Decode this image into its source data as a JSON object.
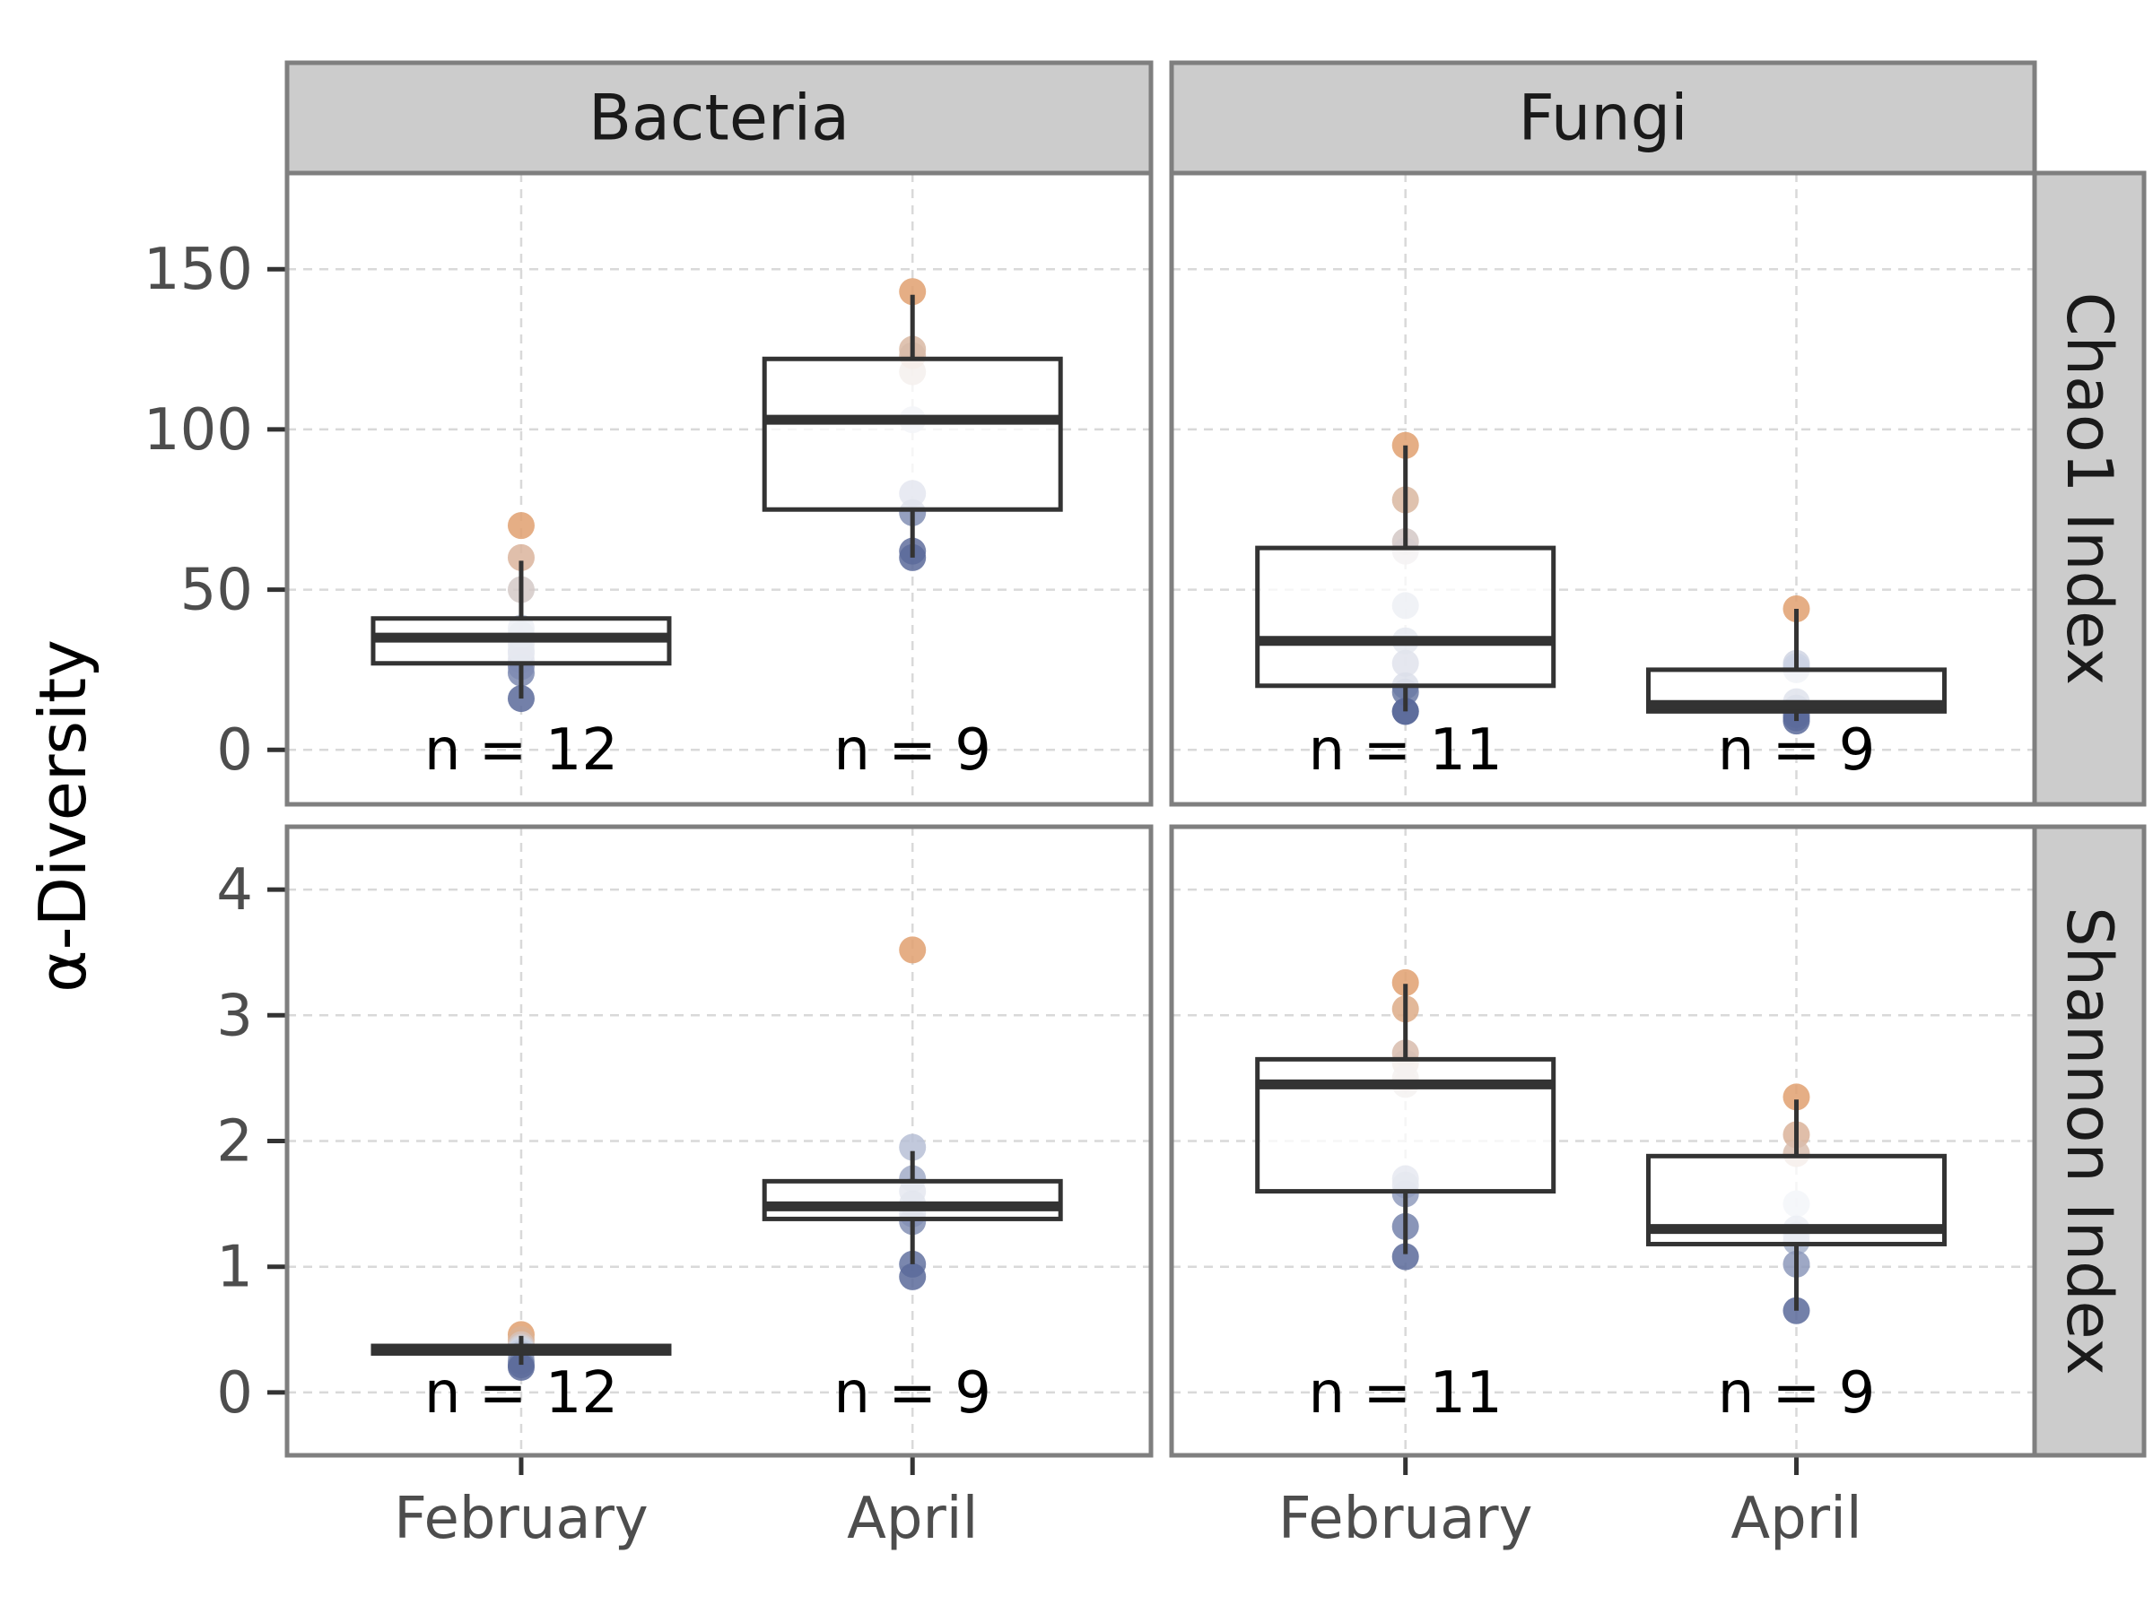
{
  "chart_data": {
    "type": "box",
    "ylabel": "α-Diversity",
    "categories": [
      "February",
      "April"
    ],
    "columns": [
      "Bacteria",
      "Fungi"
    ],
    "rows": [
      "Chao1 Index",
      "Shannon Index"
    ],
    "colors": {
      "low": "#5a6a9a",
      "mid": "#d0d7e6",
      "high": "#e0a070",
      "box": "#333333",
      "strip": "#cccccc",
      "frame": "#7f7f7f",
      "grid": "#d9d9d9"
    },
    "panels": [
      {
        "column": "Bacteria",
        "row": "Chao1 Index",
        "ylim": [
          -17,
          180
        ],
        "yticks": [
          0,
          50,
          100,
          150
        ],
        "groups": [
          {
            "category": "February",
            "n_label": "n = 12",
            "box": {
              "q1": 27,
              "median": 35,
              "q3": 41,
              "whisker_low": 16,
              "whisker_high": 59
            },
            "points": [
              70,
              60,
              50,
              38,
              33,
              30,
              28,
              26,
              24,
              16,
              36,
              31
            ]
          },
          {
            "category": "April",
            "n_label": "n = 9",
            "box": {
              "q1": 75,
              "median": 103,
              "q3": 122,
              "whisker_low": 60,
              "whisker_high": 142
            },
            "points": [
              143,
              125,
              118,
              103,
              80,
              74,
              62,
              60,
              123
            ]
          }
        ]
      },
      {
        "column": "Fungi",
        "row": "Chao1 Index",
        "ylim": [
          -17,
          180
        ],
        "yticks": [
          0,
          50,
          100,
          150
        ],
        "groups": [
          {
            "category": "February",
            "n_label": "n = 11",
            "box": {
              "q1": 20,
              "median": 34,
              "q3": 63,
              "whisker_low": 12,
              "whisker_high": 95
            },
            "points": [
              95,
              78,
              65,
              62,
              45,
              34,
              27,
              20,
              18,
              12,
              12
            ]
          },
          {
            "category": "April",
            "n_label": "n = 9",
            "box": {
              "q1": 12,
              "median": 14,
              "q3": 25,
              "whisker_low": 9,
              "whisker_high": 44
            },
            "points": [
              44,
              27,
              25,
              15,
              13,
              11,
              10,
              9,
              26
            ]
          }
        ]
      },
      {
        "column": "Bacteria",
        "row": "Shannon Index",
        "ylim": [
          -0.5,
          4.5
        ],
        "yticks": [
          0,
          1,
          2,
          3,
          4
        ],
        "groups": [
          {
            "category": "February",
            "n_label": "n = 12",
            "box": {
              "q1": 0.31,
              "median": 0.34,
              "q3": 0.37,
              "whisker_low": 0.22,
              "whisker_high": 0.45
            },
            "points": [
              0.46,
              0.42,
              0.38,
              0.36,
              0.35,
              0.34,
              0.33,
              0.32,
              0.3,
              0.25,
              0.22,
              0.2
            ]
          },
          {
            "category": "April",
            "n_label": "n = 9",
            "box": {
              "q1": 1.38,
              "median": 1.48,
              "q3": 1.68,
              "whisker_low": 1.02,
              "whisker_high": 1.92
            },
            "points": [
              3.52,
              1.95,
              1.7,
              1.6,
              1.5,
              1.42,
              1.36,
              1.02,
              0.92
            ]
          }
        ]
      },
      {
        "column": "Fungi",
        "row": "Shannon Index",
        "ylim": [
          -0.5,
          4.5
        ],
        "yticks": [
          0,
          1,
          2,
          3,
          4
        ],
        "groups": [
          {
            "category": "February",
            "n_label": "n = 11",
            "box": {
              "q1": 1.6,
              "median": 2.45,
              "q3": 2.65,
              "whisker_low": 1.1,
              "whisker_high": 3.25
            },
            "points": [
              3.26,
              3.05,
              2.7,
              2.62,
              2.45,
              1.7,
              1.65,
              1.58,
              1.32,
              1.08,
              2.5
            ]
          },
          {
            "category": "April",
            "n_label": "n = 9",
            "box": {
              "q1": 1.18,
              "median": 1.3,
              "q3": 1.88,
              "whisker_low": 0.65,
              "whisker_high": 2.33
            },
            "points": [
              2.35,
              2.05,
              1.9,
              1.5,
              1.3,
              1.2,
              1.02,
              0.65,
              1.25
            ]
          }
        ]
      }
    ]
  }
}
